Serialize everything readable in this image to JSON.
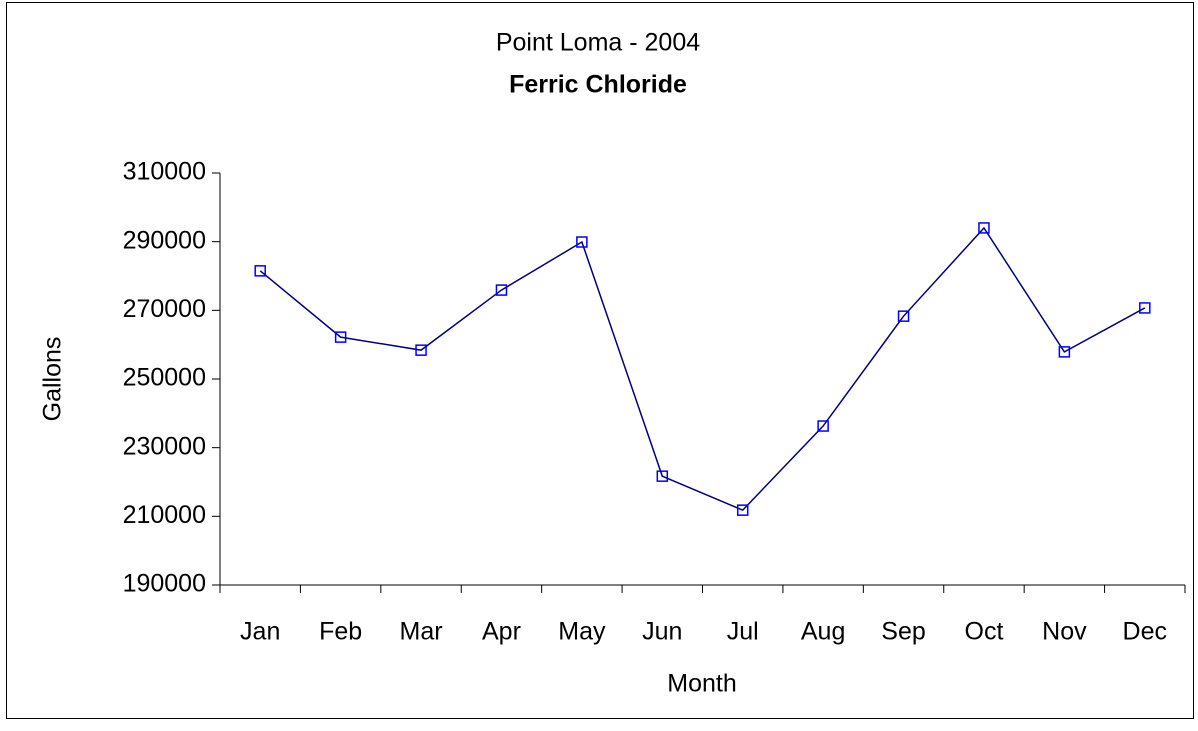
{
  "chart_data": {
    "type": "line",
    "title": "Point Loma - 2004",
    "subtitle": "Ferric Chloride",
    "x_label": "Month",
    "y_label": "Gallons",
    "categories": [
      "Jan",
      "Feb",
      "Mar",
      "Apr",
      "May",
      "Jun",
      "Jul",
      "Aug",
      "Sep",
      "Oct",
      "Nov",
      "Dec"
    ],
    "values": [
      281500,
      262200,
      258400,
      275900,
      289900,
      221700,
      211800,
      236300,
      268300,
      294000,
      257900,
      270700
    ],
    "color": "#000080",
    "marker_color": "#0000ff",
    "ylim": [
      190000,
      310000
    ],
    "yticks": [
      190000,
      210000,
      230000,
      250000,
      270000,
      290000,
      310000
    ],
    "grid": false
  }
}
